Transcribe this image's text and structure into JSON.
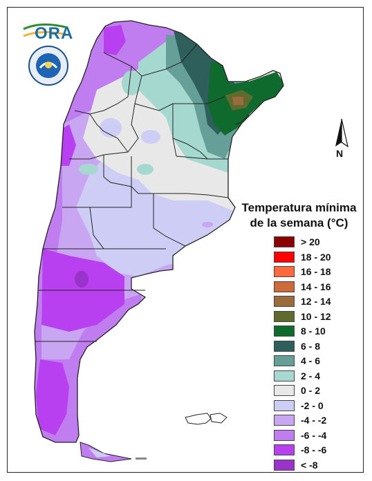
{
  "logo": {
    "text": "ORA"
  },
  "emblem": {
    "name": "servicio-meteorologico-nacional-seal",
    "ring_text": "SERVICIO METEOROLOGICO NACIONAL ARGENTINA"
  },
  "north_arrow": {
    "label": "N"
  },
  "legend": {
    "title_line1": "Temperatura mínima",
    "title_line2": "de la semana (°C)",
    "items": [
      {
        "label": "> 20",
        "color": "#8b0000"
      },
      {
        "label": "18 - 20",
        "color": "#ff0000"
      },
      {
        "label": "16 - 18",
        "color": "#ff6a3d"
      },
      {
        "label": "14 - 16",
        "color": "#cd6a3a"
      },
      {
        "label": "12 - 14",
        "color": "#9c6b3b"
      },
      {
        "label": "10 - 12",
        "color": "#5f6b2e"
      },
      {
        "label": "8 - 10",
        "color": "#0f6b2d"
      },
      {
        "label": "6 - 8",
        "color": "#2f5f5b"
      },
      {
        "label": "4 - 6",
        "color": "#669e98"
      },
      {
        "label": "2 - 4",
        "color": "#a5d9d0"
      },
      {
        "label": "0 - 2",
        "color": "#e8e8e8"
      },
      {
        "label": "-2 - 0",
        "color": "#cdcdf5"
      },
      {
        "label": "-4 - -2",
        "color": "#c9a6f2"
      },
      {
        "label": "-6 - -4",
        "color": "#c07df0"
      },
      {
        "label": "-8 - -6",
        "color": "#b940f0"
      },
      {
        "label": "< -8",
        "color": "#9a33c9"
      }
    ]
  }
}
